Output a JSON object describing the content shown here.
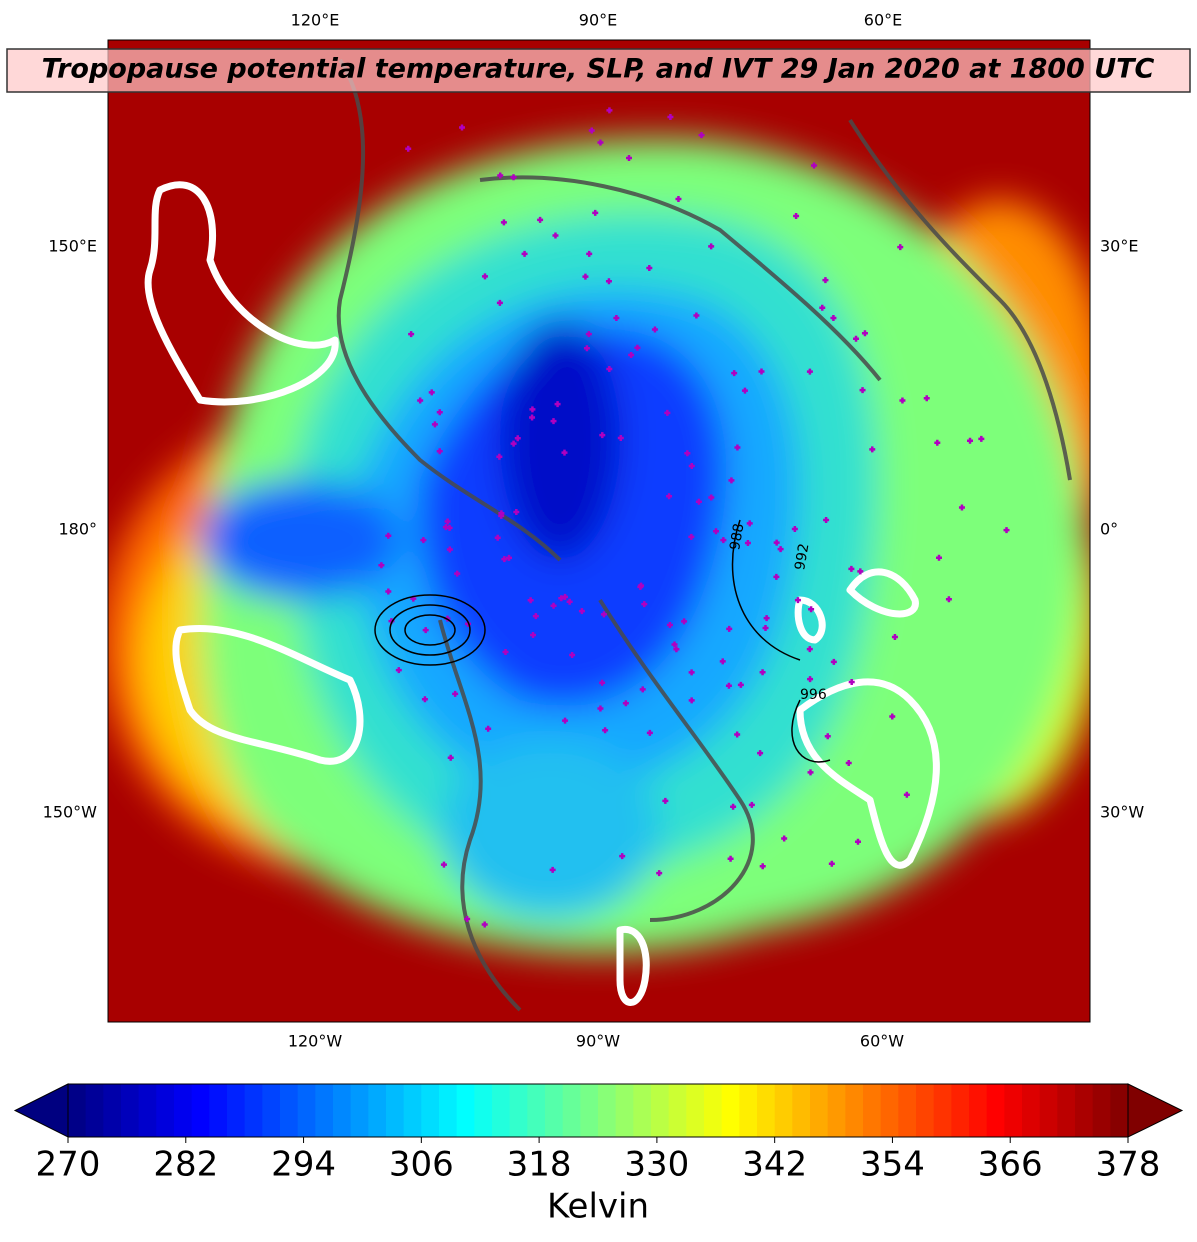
{
  "title": "Tropopause potential temperature, SLP, and IVT 29 Jan 2020 at 1800 UTC",
  "map": {
    "lon_labels": {
      "top": [
        "120°E",
        "90°E",
        "60°E"
      ],
      "bottom": [
        "120°W",
        "90°W",
        "60°W"
      ],
      "left": [
        "150°E",
        "180°",
        "150°W"
      ],
      "right": [
        "30°E",
        "0°",
        "30°W"
      ]
    },
    "contour_labels": [
      "988",
      "992",
      "996"
    ]
  },
  "colorbar": {
    "label": "Kelvin",
    "lim": [
      270,
      378
    ],
    "ticks": [
      270,
      282,
      294,
      306,
      318,
      330,
      342,
      354,
      366,
      378
    ],
    "colormap": "jet",
    "extend": "both"
  }
}
